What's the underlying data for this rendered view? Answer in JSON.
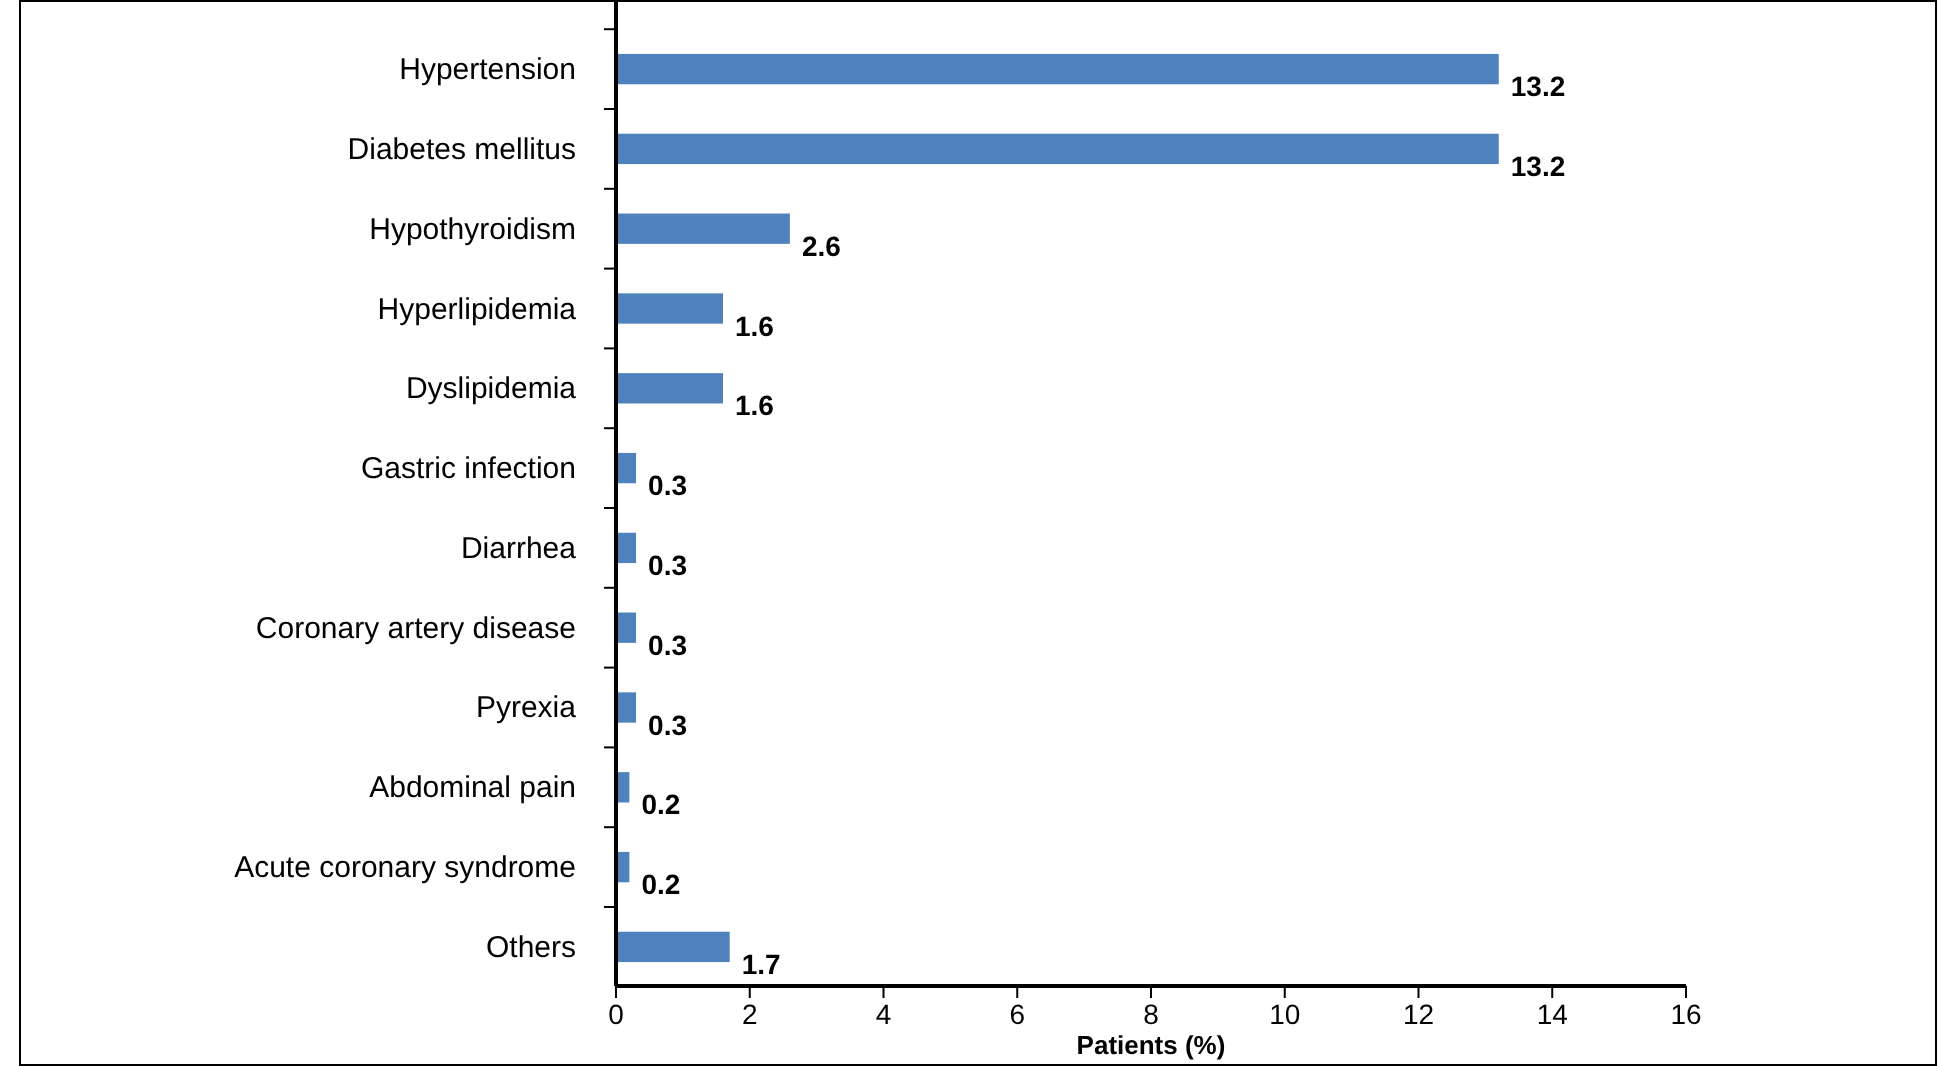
{
  "chart_data": {
    "type": "bar",
    "orientation": "horizontal",
    "xlabel": "Patients (%)",
    "categories": [
      "Hypertension",
      "Diabetes mellitus",
      "Hypothyroidism",
      "Hyperlipidemia",
      "Dyslipidemia",
      "Gastric infection",
      "Diarrhea",
      "Coronary artery disease",
      "Pyrexia",
      "Abdominal pain",
      "Acute coronary syndrome",
      "Others"
    ],
    "values": [
      13.2,
      13.2,
      2.6,
      1.6,
      1.6,
      0.3,
      0.3,
      0.3,
      0.3,
      0.2,
      0.2,
      1.7
    ],
    "color": "#4f81bd",
    "xlim": [
      0,
      16
    ],
    "xticks": [
      0,
      2,
      4,
      6,
      8,
      10,
      12,
      14,
      16
    ],
    "data_labels": true
  }
}
